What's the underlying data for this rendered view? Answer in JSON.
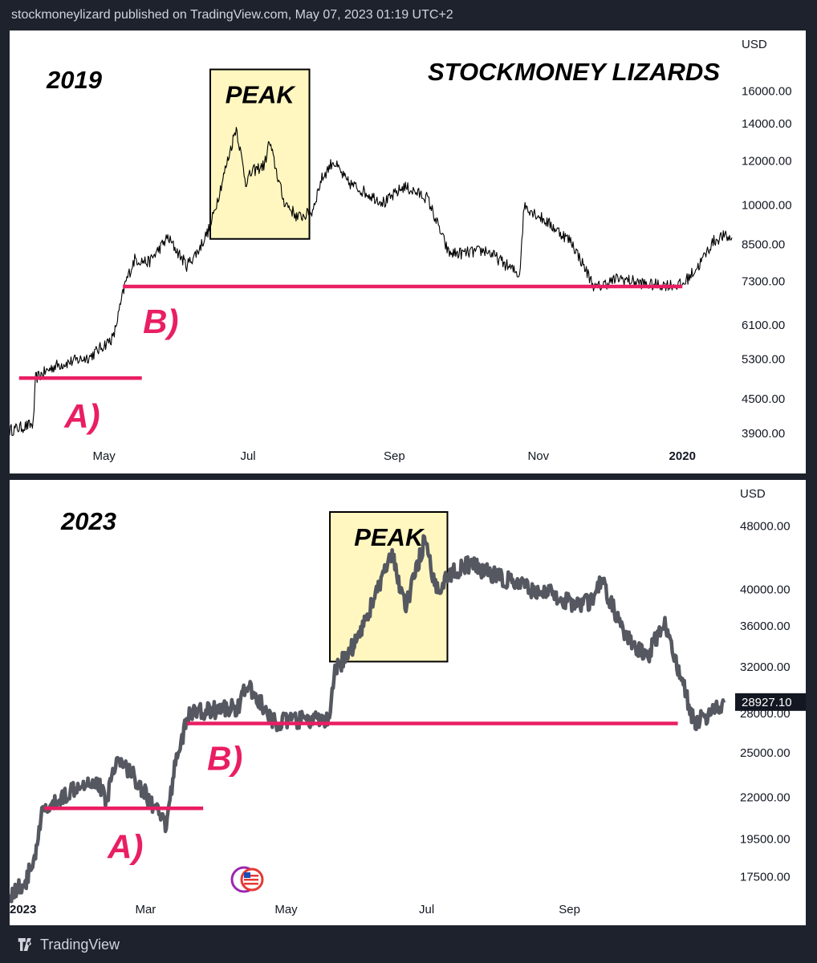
{
  "header": {
    "publish_line": "stockmoneylizard published on TradingView.com, May 07, 2023 01:19 UTC+2"
  },
  "footer": {
    "brand": "TradingView"
  },
  "colors": {
    "support_line": "#e91e63",
    "peak_box_fill": "#fff7bf",
    "candle_2019": "#000000",
    "line_2023": "#555860",
    "label_text": "#e91e63"
  },
  "chart_data": [
    {
      "type": "line",
      "title": "STOCKMONEY LIZARDS",
      "year_label": "2019",
      "currency": "USD",
      "y_scale": "log",
      "ylim": [
        3800,
        18000
      ],
      "xlim": [
        "2019-03-22",
        "2020-01-22"
      ],
      "y_ticks": [
        "16000.00",
        "14000.00",
        "12000.00",
        "10000.00",
        "8500.00",
        "7300.00",
        "6100.00",
        "5300.00",
        "4500.00",
        "3900.00"
      ],
      "x_ticks": [
        {
          "label": "May",
          "date": "2019-05-01"
        },
        {
          "label": "Jul",
          "date": "2019-07-01"
        },
        {
          "label": "Sep",
          "date": "2019-09-01"
        },
        {
          "label": "Nov",
          "date": "2019-11-01"
        },
        {
          "label": "2020",
          "date": "2020-01-01",
          "bold": true
        }
      ],
      "peak_box": {
        "label": "PEAK",
        "x_start": "2019-06-15",
        "x_end": "2019-07-27",
        "y_low": 8700,
        "y_high": 17500
      },
      "support_lines": [
        {
          "label": "A)",
          "y": 4900,
          "x_start": "2019-03-26",
          "x_end": "2019-05-17"
        },
        {
          "label": "B)",
          "y": 7150,
          "x_start": "2019-05-09",
          "x_end": "2020-01-01"
        }
      ],
      "series": [
        {
          "x": [
            "2019-03-22",
            "2019-04-01",
            "2019-04-02",
            "2019-04-10",
            "2019-04-25",
            "2019-05-05",
            "2019-05-10",
            "2019-05-14",
            "2019-05-20",
            "2019-05-28",
            "2019-06-05",
            "2019-06-10",
            "2019-06-15",
            "2019-06-20",
            "2019-06-26",
            "2019-06-30",
            "2019-07-03",
            "2019-07-08",
            "2019-07-10",
            "2019-07-16",
            "2019-07-22",
            "2019-07-28",
            "2019-08-01",
            "2019-08-06",
            "2019-08-12",
            "2019-08-22",
            "2019-08-28",
            "2019-09-05",
            "2019-09-15",
            "2019-09-24",
            "2019-09-30",
            "2019-10-10",
            "2019-10-24",
            "2019-10-26",
            "2019-11-05",
            "2019-11-15",
            "2019-11-25",
            "2019-12-05",
            "2019-12-18",
            "2019-12-25",
            "2020-01-01",
            "2020-01-08",
            "2020-01-14",
            "2020-01-18",
            "2020-01-22"
          ],
          "values": [
            3950,
            4050,
            4900,
            5150,
            5350,
            5800,
            7250,
            8000,
            7900,
            8750,
            7800,
            8300,
            9150,
            11000,
            13800,
            11000,
            11500,
            11800,
            13000,
            10200,
            9500,
            9700,
            11100,
            12000,
            11000,
            10400,
            10100,
            10800,
            10300,
            8200,
            8200,
            8300,
            7500,
            10000,
            9300,
            8600,
            7100,
            7400,
            7200,
            7200,
            7200,
            7800,
            8600,
            8800,
            8700
          ]
        }
      ]
    },
    {
      "type": "line",
      "year_label": "2023",
      "currency": "USD",
      "y_scale": "log",
      "ylim": [
        16800,
        50000
      ],
      "xlim": [
        "2023-01-01",
        "2023-11-07"
      ],
      "last_price": "28927.10",
      "y_ticks": [
        "48000.00",
        "40000.00",
        "36000.00",
        "32000.00",
        "28000.00",
        "25000.00",
        "22000.00",
        "19500.00",
        "17500.00"
      ],
      "x_ticks": [
        {
          "label": "2023",
          "date": "2023-01-01",
          "bold": true
        },
        {
          "label": "Mar",
          "date": "2023-03-01"
        },
        {
          "label": "May",
          "date": "2023-05-01"
        },
        {
          "label": "Jul",
          "date": "2023-07-01"
        },
        {
          "label": "Sep",
          "date": "2023-09-01"
        }
      ],
      "peak_box": {
        "label": "PEAK",
        "x_start": "2023-05-20",
        "x_end": "2023-07-10",
        "y_low": 32500,
        "y_high": 50000
      },
      "support_lines": [
        {
          "label": "A)",
          "y": 21300,
          "x_start": "2023-01-16",
          "x_end": "2023-03-26"
        },
        {
          "label": "B)",
          "y": 27200,
          "x_start": "2023-03-19",
          "x_end": "2023-10-18"
        }
      ],
      "series": [
        {
          "x": [
            "2023-01-01",
            "2023-01-08",
            "2023-01-13",
            "2023-01-15",
            "2023-01-20",
            "2023-02-01",
            "2023-02-08",
            "2023-02-12",
            "2023-02-16",
            "2023-02-22",
            "2023-03-01",
            "2023-03-10",
            "2023-03-14",
            "2023-03-20",
            "2023-04-01",
            "2023-04-10",
            "2023-04-14",
            "2023-04-20",
            "2023-04-25",
            "2023-05-10",
            "2023-05-20",
            "2023-05-22",
            "2023-05-30",
            "2023-06-05",
            "2023-06-12",
            "2023-06-16",
            "2023-06-22",
            "2023-06-30",
            "2023-07-05",
            "2023-07-12",
            "2023-07-20",
            "2023-08-01",
            "2023-08-15",
            "2023-08-25",
            "2023-09-01",
            "2023-09-10",
            "2023-09-15",
            "2023-09-25",
            "2023-10-01",
            "2023-10-05",
            "2023-10-12",
            "2023-10-18",
            "2023-10-25",
            "2023-11-01",
            "2023-11-07"
          ],
          "values": [
            16600,
            17200,
            19000,
            21000,
            21500,
            23000,
            23000,
            21800,
            24500,
            23800,
            22200,
            20200,
            24500,
            28000,
            28300,
            28500,
            30300,
            28800,
            27300,
            27500,
            27400,
            31500,
            34000,
            37000,
            41500,
            44000,
            38000,
            46000,
            40000,
            42000,
            43000,
            41500,
            40000,
            39500,
            38500,
            38500,
            41000,
            35000,
            33500,
            33000,
            36500,
            32000,
            27300,
            28000,
            28900
          ]
        }
      ]
    }
  ]
}
